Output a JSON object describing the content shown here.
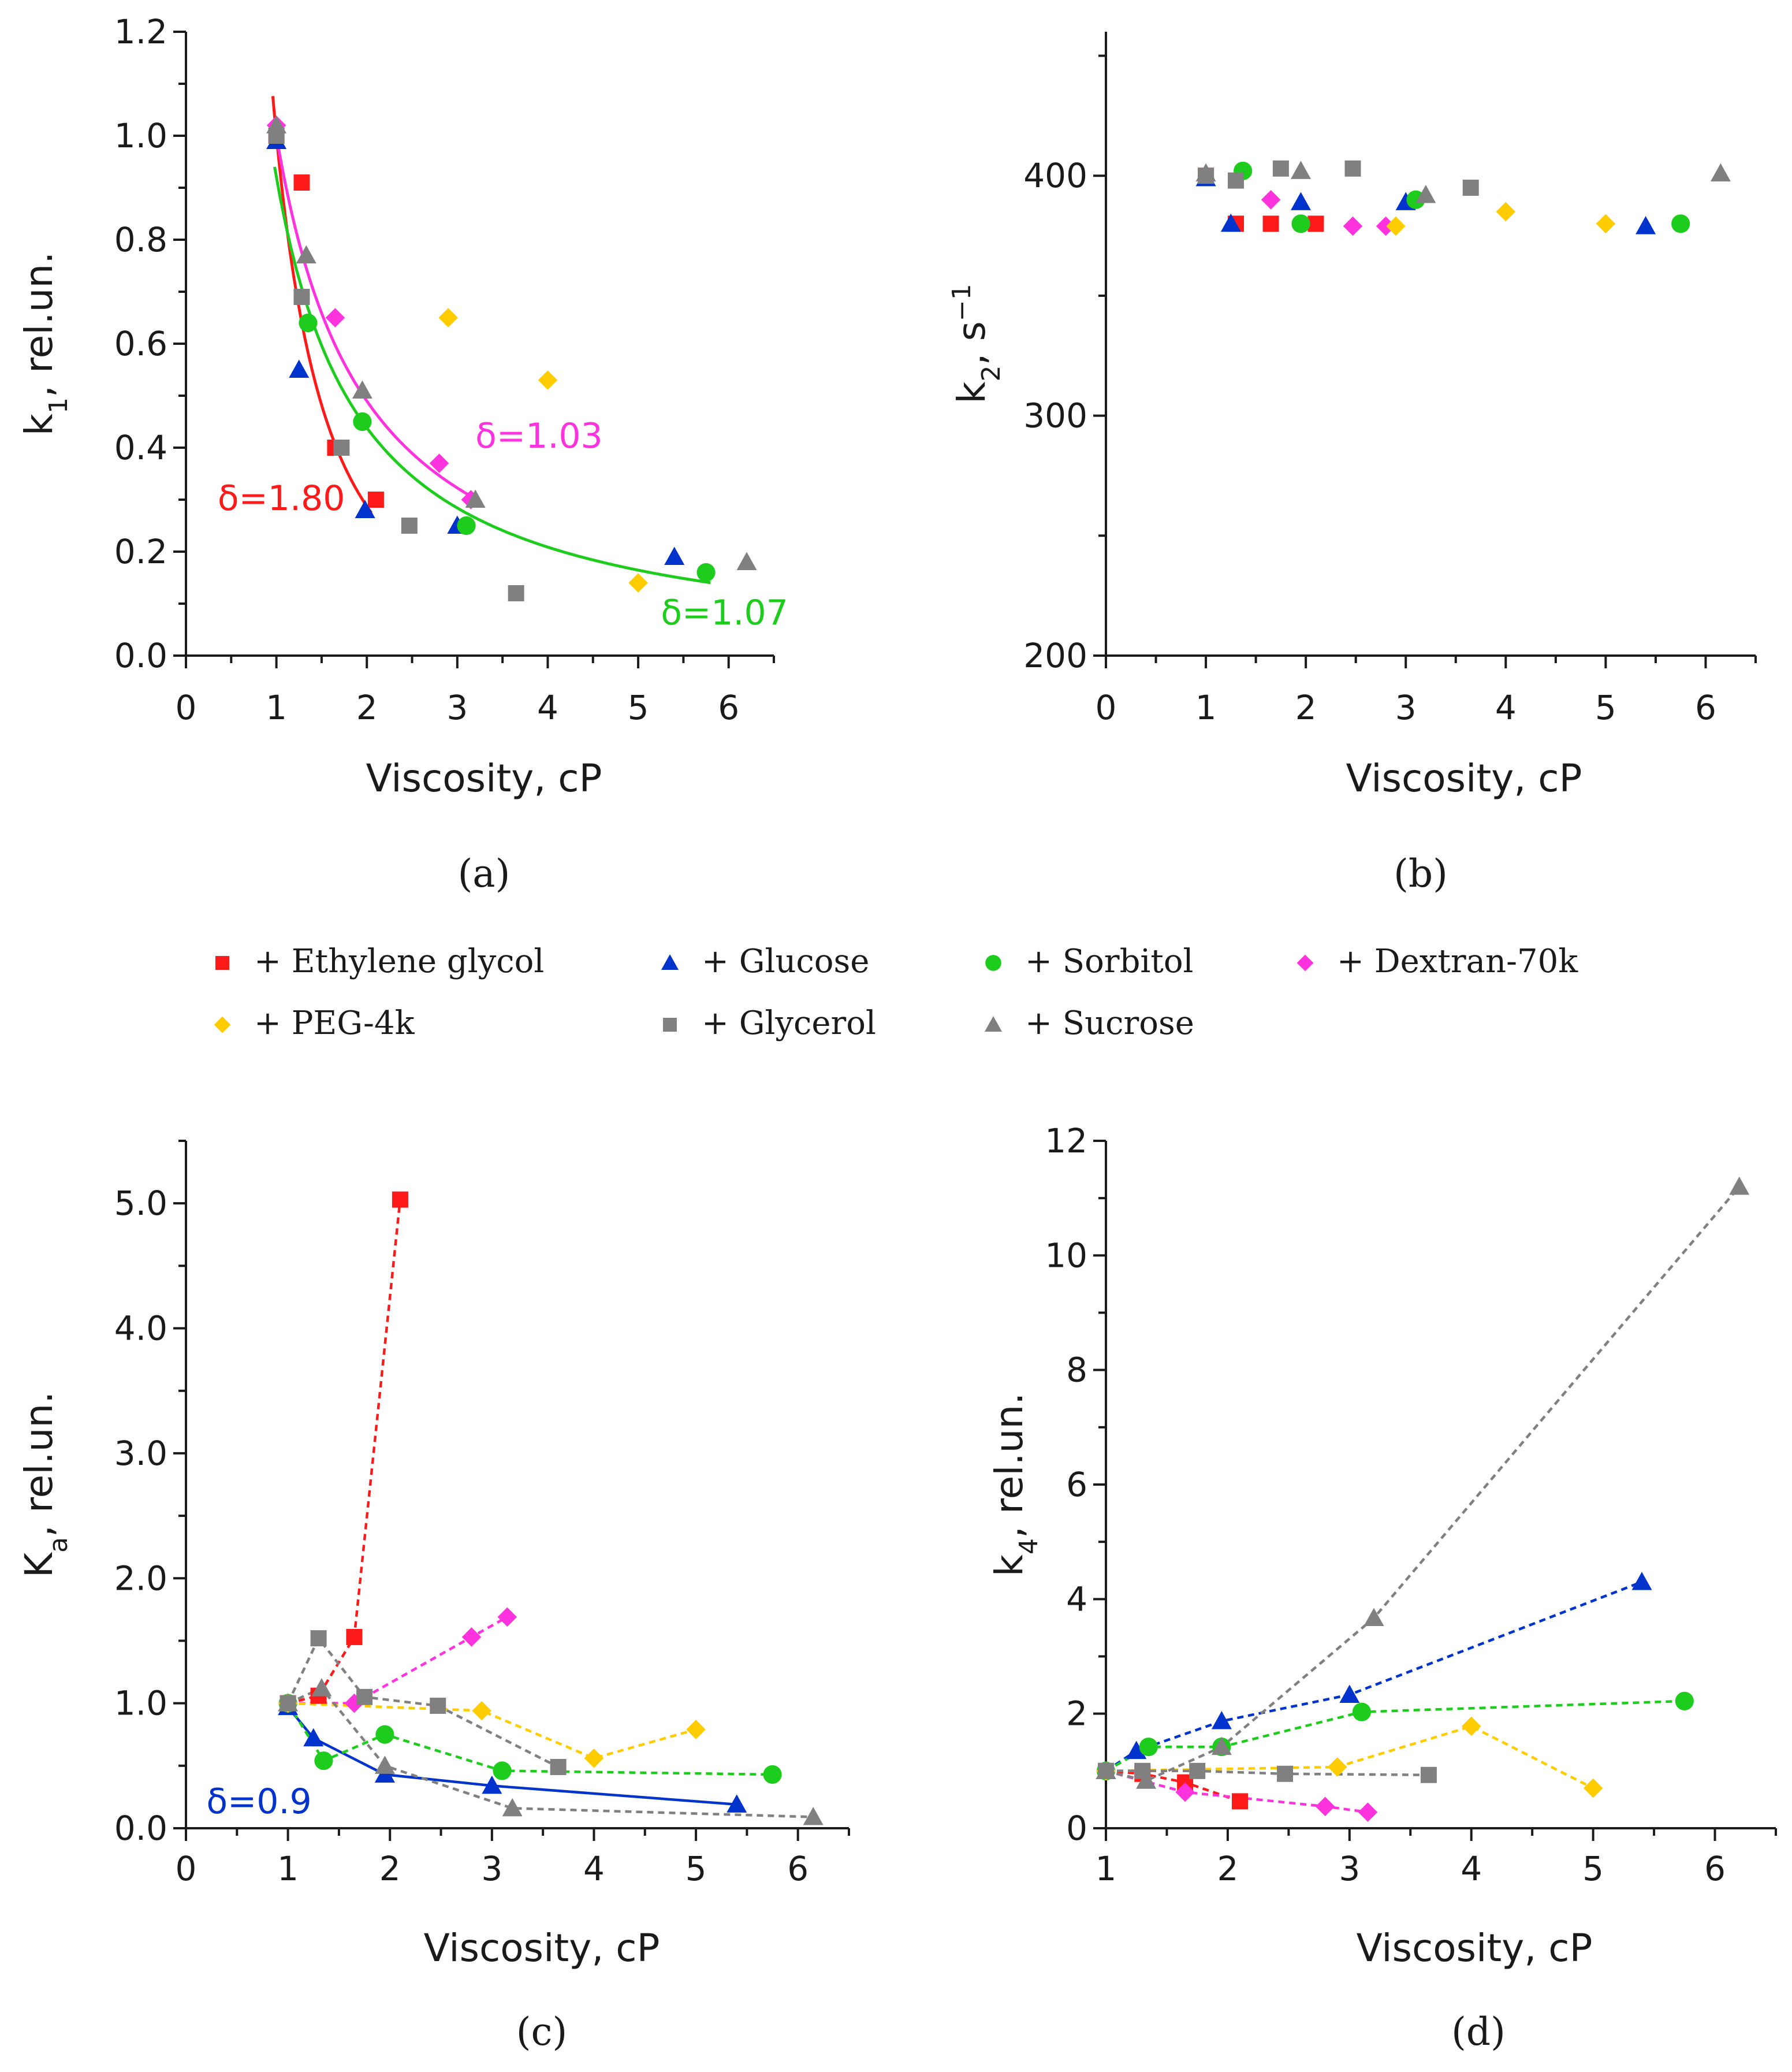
{
  "series_styles": {
    "Ethylene glycol": {
      "color": "#ff1a1a",
      "marker": "square"
    },
    "Glucose": {
      "color": "#0033cc",
      "marker": "triangle"
    },
    "Sorbitol": {
      "color": "#1ecc1e",
      "marker": "circle"
    },
    "Dextran-70k": {
      "color": "#ff33dd",
      "marker": "diamond"
    },
    "PEG-4k": {
      "color": "#ffcc00",
      "marker": "diamond"
    },
    "Glycerol": {
      "color": "#808080",
      "marker": "square"
    },
    "Sucrose": {
      "color": "#808080",
      "marker": "triangle"
    }
  },
  "legend": {
    "entries": [
      "+ Ethylene glycol",
      "+ Glucose",
      "+ Sorbitol",
      "+ Dextran-70k",
      "+ PEG-4k",
      "+ Glycerol",
      "+ Sucrose"
    ],
    "series": [
      "Ethylene glycol",
      "Glucose",
      "Sorbitol",
      "Dextran-70k",
      "PEG-4k",
      "Glycerol",
      "Sucrose"
    ]
  },
  "chart_data": [
    {
      "panel": "(a)",
      "type": "scatter",
      "xlabel": "Viscosity, cP",
      "ylabel": "k1, rel.un.",
      "ylabel_main": "k",
      "ylabel_sub": "1",
      "ylabel_rest": ", rel.un.",
      "xlim": [
        0,
        6.5
      ],
      "ylim": [
        0,
        1.2
      ],
      "xticks": [
        0,
        1,
        2,
        3,
        4,
        5,
        6
      ],
      "xtick_labels": [
        "0",
        "1",
        "2",
        "3",
        "4",
        "5",
        "6"
      ],
      "yticks": [
        0,
        0.2,
        0.4,
        0.6,
        0.8,
        1.0,
        1.2
      ],
      "ytick_labels": [
        "0.0",
        "0.2",
        "0.4",
        "0.6",
        "0.8",
        "1.0",
        "1.2"
      ],
      "series": [
        {
          "name": "Ethylene glycol",
          "points": [
            [
              1.0,
              1.0
            ],
            [
              1.28,
              0.91
            ],
            [
              1.65,
              0.4
            ],
            [
              2.1,
              0.3
            ]
          ]
        },
        {
          "name": "Glucose",
          "points": [
            [
              1.0,
              0.99
            ],
            [
              1.25,
              0.55
            ],
            [
              1.98,
              0.28
            ],
            [
              3.0,
              0.25
            ],
            [
              5.4,
              0.19
            ]
          ]
        },
        {
          "name": "Sorbitol",
          "points": [
            [
              1.35,
              0.64
            ],
            [
              1.95,
              0.45
            ],
            [
              3.1,
              0.25
            ],
            [
              5.75,
              0.16
            ]
          ]
        },
        {
          "name": "Dextran-70k",
          "points": [
            [
              1.0,
              1.02
            ],
            [
              1.65,
              0.65
            ],
            [
              2.8,
              0.37
            ],
            [
              3.15,
              0.3
            ]
          ]
        },
        {
          "name": "PEG-4k",
          "points": [
            [
              2.9,
              0.65
            ],
            [
              4.0,
              0.53
            ],
            [
              5.0,
              0.14
            ]
          ]
        },
        {
          "name": "Glycerol",
          "points": [
            [
              1.0,
              1.0
            ],
            [
              1.28,
              0.69
            ],
            [
              1.72,
              0.4
            ],
            [
              2.47,
              0.25
            ],
            [
              3.65,
              0.12
            ]
          ]
        },
        {
          "name": "Sucrose",
          "points": [
            [
              1.0,
              1.02
            ],
            [
              1.33,
              0.77
            ],
            [
              1.95,
              0.51
            ],
            [
              3.2,
              0.3
            ],
            [
              6.2,
              0.18
            ]
          ]
        }
      ],
      "fits": [
        {
          "name": "Ethylene glycol",
          "color": "#ff1a1a",
          "a": 1.0,
          "delta": 1.8,
          "x0": 0.96,
          "x1": 2.05
        },
        {
          "name": "Dextran-70k",
          "color": "#ff33dd",
          "a": 1.0,
          "delta": 1.03,
          "x0": 0.98,
          "x1": 3.25
        },
        {
          "name": "Sorbitol",
          "color": "#1ecc1e",
          "a": 0.92,
          "delta": 1.07,
          "x0": 0.98,
          "x1": 5.8
        }
      ],
      "annotations": [
        {
          "text": "δ=1.80",
          "color": "#ff1a1a",
          "x": 0.35,
          "y": 0.28
        },
        {
          "text": "δ=1.03",
          "color": "#ff33dd",
          "x": 3.2,
          "y": 0.4
        },
        {
          "text": "δ=1.07",
          "color": "#1ecc1e",
          "x": 5.25,
          "y": 0.06
        }
      ]
    },
    {
      "panel": "(b)",
      "type": "scatter",
      "xlabel": "Viscosity, cP",
      "ylabel": "k2, s−1",
      "ylabel_main": "k",
      "ylabel_sub": "2",
      "ylabel_rest": ", s",
      "ylabel_sup": "−1",
      "xlim": [
        0,
        6.5
      ],
      "ylim": [
        200,
        460
      ],
      "xticks": [
        0,
        1,
        2,
        3,
        4,
        5,
        6
      ],
      "xtick_labels": [
        "0",
        "1",
        "2",
        "3",
        "4",
        "5",
        "6"
      ],
      "yticks": [
        200,
        300,
        400
      ],
      "ytick_labels": [
        "200",
        "300",
        "400"
      ],
      "series": [
        {
          "name": "Ethylene glycol",
          "points": [
            [
              1.0,
              400
            ],
            [
              1.3,
              380
            ],
            [
              1.65,
              380
            ],
            [
              2.1,
              380
            ]
          ]
        },
        {
          "name": "Glucose",
          "points": [
            [
              1.0,
              399
            ],
            [
              1.25,
              380
            ],
            [
              1.95,
              389
            ],
            [
              3.0,
              389
            ],
            [
              5.4,
              379
            ]
          ]
        },
        {
          "name": "Sorbitol",
          "points": [
            [
              1.37,
              402
            ],
            [
              1.95,
              380
            ],
            [
              3.1,
              390
            ],
            [
              5.75,
              380
            ]
          ]
        },
        {
          "name": "Dextran-70k",
          "points": [
            [
              1.65,
              390
            ],
            [
              2.47,
              379
            ],
            [
              2.8,
              379
            ]
          ]
        },
        {
          "name": "PEG-4k",
          "points": [
            [
              2.9,
              379
            ],
            [
              4.0,
              385
            ],
            [
              5.0,
              380
            ]
          ]
        },
        {
          "name": "Glycerol",
          "points": [
            [
              1.0,
              400
            ],
            [
              1.3,
              398
            ],
            [
              1.75,
              403
            ],
            [
              2.47,
              403
            ],
            [
              3.65,
              395
            ]
          ]
        },
        {
          "name": "Sucrose",
          "points": [
            [
              1.0,
              401
            ],
            [
              1.95,
              402
            ],
            [
              3.2,
              392
            ],
            [
              6.15,
              401
            ]
          ]
        }
      ]
    },
    {
      "panel": "(c)",
      "type": "line",
      "xlabel": "Viscosity, cP",
      "ylabel": "Ka, rel.un.",
      "ylabel_main": "K",
      "ylabel_sub": "a",
      "ylabel_rest": ", rel.un.",
      "xlim": [
        0,
        6.5
      ],
      "ylim": [
        0,
        5.5
      ],
      "xticks": [
        0,
        1,
        2,
        3,
        4,
        5,
        6
      ],
      "xtick_labels": [
        "0",
        "1",
        "2",
        "3",
        "4",
        "5",
        "6"
      ],
      "yticks": [
        0,
        1,
        2,
        3,
        4,
        5
      ],
      "ytick_labels": [
        "0.0",
        "1.0",
        "2.0",
        "3.0",
        "4.0",
        "5.0"
      ],
      "series": [
        {
          "name": "Ethylene glycol",
          "dashed": true,
          "points": [
            [
              1.0,
              1.0
            ],
            [
              1.3,
              1.06
            ],
            [
              1.65,
              1.53
            ],
            [
              2.1,
              5.03
            ]
          ]
        },
        {
          "name": "Glucose",
          "dashed": false,
          "points": [
            [
              1.0,
              0.97
            ],
            [
              1.25,
              0.72
            ],
            [
              1.95,
              0.43
            ],
            [
              3.0,
              0.34
            ],
            [
              5.4,
              0.19
            ]
          ]
        },
        {
          "name": "Sorbitol",
          "dashed": true,
          "points": [
            [
              1.0,
              1.0
            ],
            [
              1.35,
              0.54
            ],
            [
              1.95,
              0.75
            ],
            [
              3.1,
              0.46
            ],
            [
              5.75,
              0.43
            ]
          ]
        },
        {
          "name": "Dextran-70k",
          "dashed": true,
          "points": [
            [
              1.0,
              1.0
            ],
            [
              1.65,
              1.0
            ],
            [
              2.8,
              1.53
            ],
            [
              3.15,
              1.69
            ]
          ]
        },
        {
          "name": "PEG-4k",
          "dashed": true,
          "points": [
            [
              1.0,
              1.0
            ],
            [
              2.9,
              0.94
            ],
            [
              4.0,
              0.56
            ],
            [
              5.0,
              0.79
            ]
          ]
        },
        {
          "name": "Glycerol",
          "dashed": true,
          "points": [
            [
              1.0,
              1.0
            ],
            [
              1.3,
              1.52
            ],
            [
              1.75,
              1.05
            ],
            [
              2.47,
              0.98
            ],
            [
              3.65,
              0.49
            ]
          ]
        },
        {
          "name": "Sucrose",
          "dashed": true,
          "points": [
            [
              1.0,
              1.0
            ],
            [
              1.33,
              1.12
            ],
            [
              1.95,
              0.5
            ],
            [
              3.2,
              0.16
            ],
            [
              6.15,
              0.09
            ]
          ]
        }
      ],
      "annotations": [
        {
          "text": "δ=0.9",
          "color": "#0033cc",
          "x": 0.2,
          "y": 0.12
        }
      ]
    },
    {
      "panel": "(d)",
      "type": "line",
      "xlabel": "Viscosity, cP",
      "ylabel": "k4, rel.un.",
      "ylabel_main": "k",
      "ylabel_sub": "4",
      "ylabel_rest": ", rel.un.",
      "xlim": [
        1,
        6.5
      ],
      "ylim": [
        0,
        12
      ],
      "xticks": [
        1,
        2,
        3,
        4,
        5,
        6
      ],
      "xtick_labels": [
        "1",
        "2",
        "3",
        "4",
        "5",
        "6"
      ],
      "yticks": [
        0,
        2,
        4,
        6,
        8,
        10,
        12
      ],
      "ytick_labels": [
        "0",
        "2",
        "4",
        "6",
        "8",
        "10",
        "12"
      ],
      "series": [
        {
          "name": "Ethylene glycol",
          "dashed": true,
          "points": [
            [
              1.0,
              1.0
            ],
            [
              1.3,
              0.95
            ],
            [
              1.65,
              0.8
            ],
            [
              2.1,
              0.47
            ]
          ]
        },
        {
          "name": "Glucose",
          "dashed": true,
          "points": [
            [
              1.0,
              1.0
            ],
            [
              1.25,
              1.35
            ],
            [
              1.95,
              1.87
            ],
            [
              3.0,
              2.33
            ],
            [
              5.4,
              4.3
            ]
          ]
        },
        {
          "name": "Sorbitol",
          "dashed": true,
          "points": [
            [
              1.0,
              1.0
            ],
            [
              1.35,
              1.42
            ],
            [
              1.95,
              1.42
            ],
            [
              3.1,
              2.03
            ],
            [
              5.75,
              2.22
            ]
          ]
        },
        {
          "name": "Dextran-70k",
          "dashed": true,
          "points": [
            [
              1.0,
              1.0
            ],
            [
              1.65,
              0.63
            ],
            [
              2.8,
              0.38
            ],
            [
              3.15,
              0.28
            ]
          ]
        },
        {
          "name": "PEG-4k",
          "dashed": true,
          "points": [
            [
              1.0,
              1.0
            ],
            [
              2.9,
              1.07
            ],
            [
              4.0,
              1.78
            ],
            [
              5.0,
              0.7
            ]
          ]
        },
        {
          "name": "Glycerol",
          "dashed": true,
          "points": [
            [
              1.0,
              1.0
            ],
            [
              1.3,
              1.0
            ],
            [
              1.75,
              1.0
            ],
            [
              2.47,
              0.95
            ],
            [
              3.65,
              0.93
            ]
          ]
        },
        {
          "name": "Sucrose",
          "dashed": true,
          "points": [
            [
              1.0,
              1.0
            ],
            [
              1.33,
              0.83
            ],
            [
              1.95,
              1.42
            ],
            [
              3.2,
              3.67
            ],
            [
              6.2,
              11.2
            ]
          ]
        }
      ]
    }
  ]
}
